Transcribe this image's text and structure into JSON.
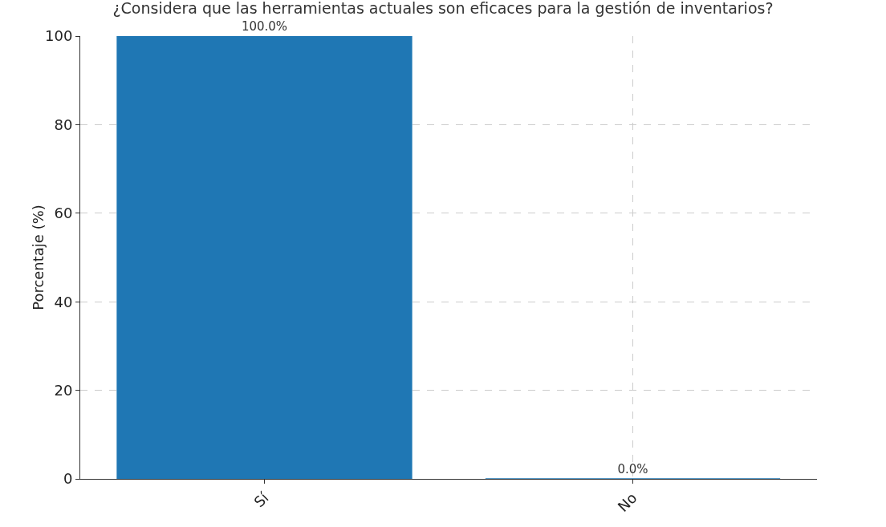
{
  "chart_data": {
    "type": "bar",
    "title": "¿Considera que las herramientas actuales son eficaces para la gestión de inventarios?",
    "ylabel": "Porcentaje (%)",
    "categories": [
      "Sí",
      "No"
    ],
    "values": [
      100,
      0
    ],
    "value_labels": [
      "100.0%",
      "0.0%"
    ],
    "color": "#1f77b4",
    "ylim": [
      0,
      100
    ],
    "yticks": [
      0,
      20,
      40,
      60,
      80,
      100
    ],
    "grid": true,
    "line_style": "dashed"
  }
}
